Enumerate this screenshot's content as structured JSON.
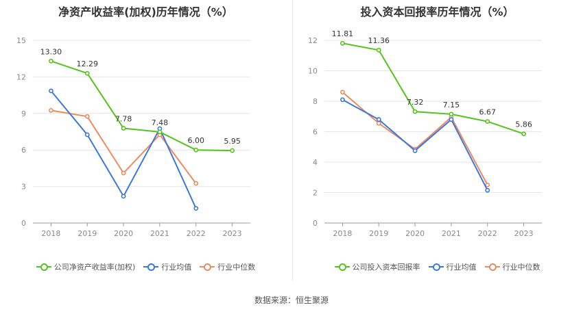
{
  "source_label": "数据来源：恒生聚源",
  "chart_data": [
    {
      "type": "line",
      "title": "净资产收益率(加权)历年情况（%）",
      "categories": [
        "2018",
        "2019",
        "2020",
        "2021",
        "2022",
        "2023"
      ],
      "ylim": [
        0,
        15
      ],
      "yticks": [
        0,
        3,
        6,
        9,
        12,
        15
      ],
      "grid": true,
      "legend_placement": "bottom",
      "series": [
        {
          "name": "公司净资产收益率(加权)",
          "color": "#52c41a",
          "values": [
            13.3,
            12.29,
            7.78,
            7.48,
            6.0,
            5.95
          ],
          "labels": [
            "13.30",
            "12.29",
            "7.78",
            "7.48",
            "6.00",
            "5.95"
          ]
        },
        {
          "name": "行业均值",
          "color": "#3a78e0",
          "values": [
            10.85,
            7.25,
            2.2,
            7.75,
            1.2,
            null
          ]
        },
        {
          "name": "行业中位数",
          "color": "#f08a5d",
          "values": [
            9.25,
            8.75,
            4.1,
            7.25,
            3.25,
            null
          ]
        }
      ]
    },
    {
      "type": "line",
      "title": "投入资本回报率历年情况（%）",
      "categories": [
        "2018",
        "2019",
        "2020",
        "2021",
        "2022",
        "2023"
      ],
      "ylim": [
        0,
        12
      ],
      "yticks": [
        0,
        2,
        4,
        6,
        8,
        10,
        12
      ],
      "grid": true,
      "legend_placement": "bottom",
      "series": [
        {
          "name": "公司投入资本回报率",
          "color": "#52c41a",
          "values": [
            11.81,
            11.36,
            7.32,
            7.15,
            6.67,
            5.86
          ],
          "labels": [
            "11.81",
            "11.36",
            "7.32",
            "7.15",
            "6.67",
            "5.86"
          ]
        },
        {
          "name": "行业均值",
          "color": "#3a78e0",
          "values": [
            8.1,
            6.8,
            4.75,
            6.8,
            2.15,
            null
          ]
        },
        {
          "name": "行业中位数",
          "color": "#f08a5d",
          "values": [
            8.6,
            6.55,
            4.85,
            6.95,
            2.5,
            null
          ]
        }
      ]
    }
  ]
}
